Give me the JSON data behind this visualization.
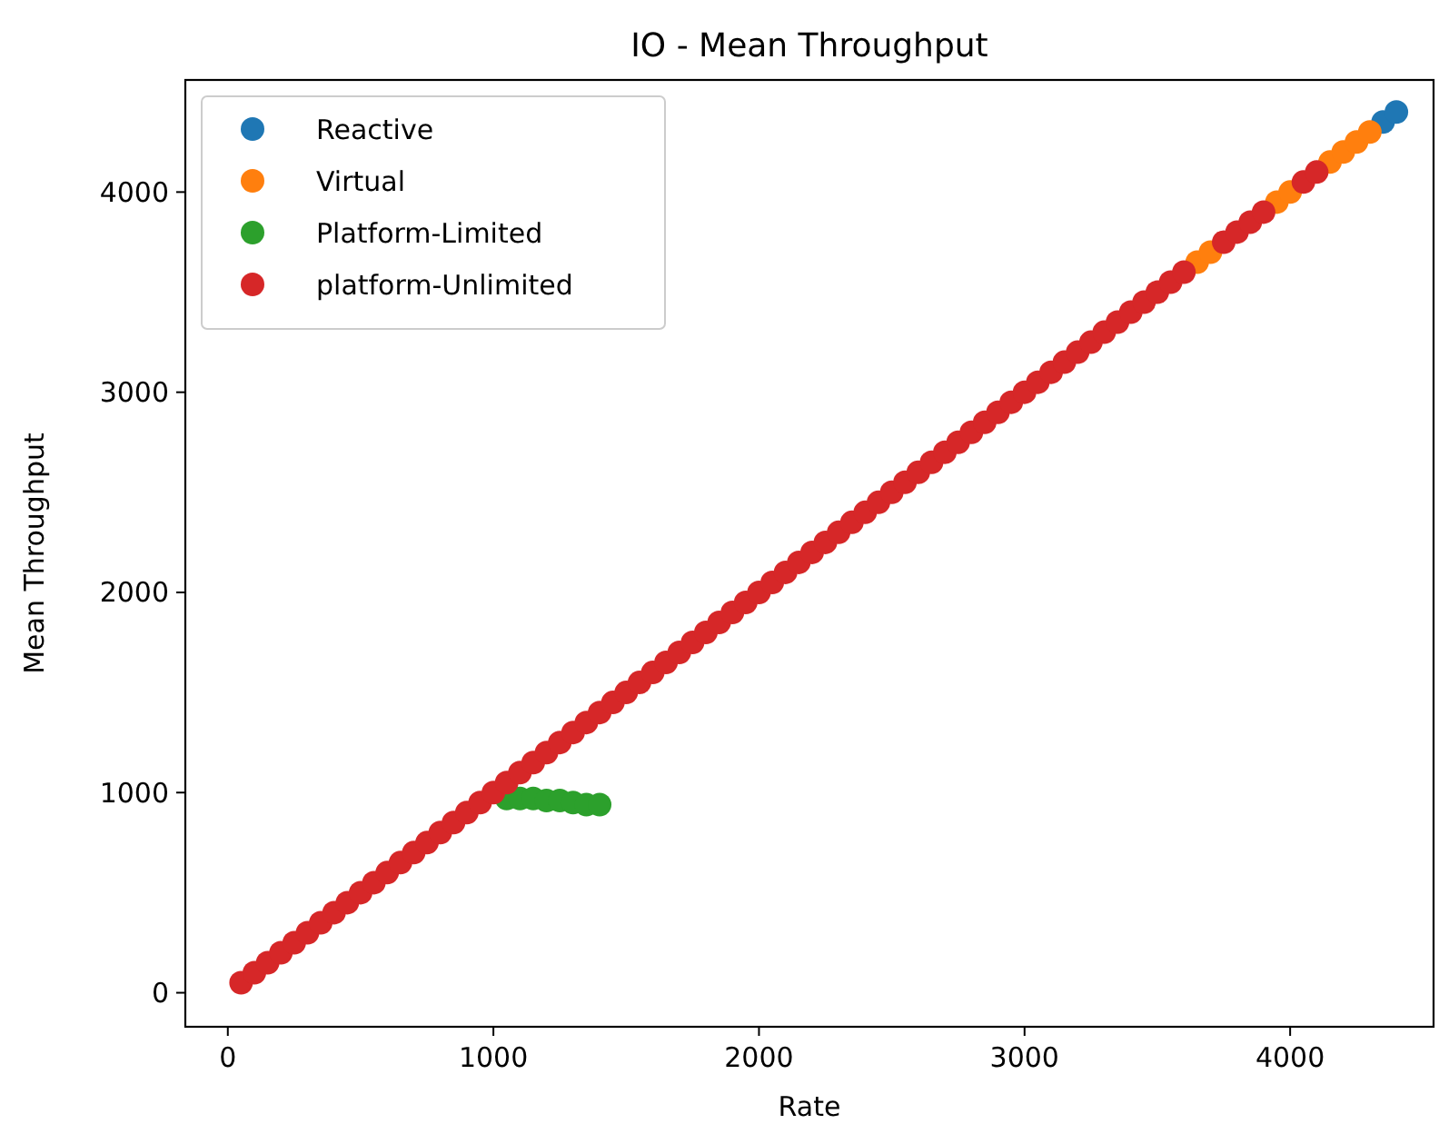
{
  "chart_data": {
    "type": "scatter",
    "title": "IO - Mean Throughput",
    "xlabel": "Rate",
    "ylabel": "Mean Throughput",
    "xlim": [
      -160,
      4540
    ],
    "ylim": [
      -170,
      4560
    ],
    "xticks": [
      0,
      1000,
      2000,
      3000,
      4000
    ],
    "yticks": [
      0,
      1000,
      2000,
      3000,
      4000
    ],
    "grid": false,
    "legend": "top left",
    "marker": "circle",
    "series": [
      {
        "name": "Reactive",
        "color": "#1f77b4",
        "x": [
          4350,
          4400
        ],
        "values": [
          4350,
          4400
        ]
      },
      {
        "name": "Virtual",
        "color": "#ff7f0e",
        "x": [
          3650,
          3700,
          3950,
          4000,
          4150,
          4200,
          4250,
          4300
        ],
        "values": [
          3650,
          3700,
          3950,
          4000,
          4150,
          4200,
          4250,
          4300
        ]
      },
      {
        "name": "Platform-Limited",
        "color": "#2ca02c",
        "x": [
          1050,
          1100,
          1150,
          1200,
          1250,
          1300,
          1350,
          1400
        ],
        "values": [
          970,
          970,
          970,
          960,
          960,
          950,
          940,
          940
        ]
      },
      {
        "name": "platform-Unlimited",
        "color": "#d62728",
        "x": [
          50,
          100,
          150,
          200,
          250,
          300,
          350,
          400,
          450,
          500,
          550,
          600,
          650,
          700,
          750,
          800,
          850,
          900,
          950,
          1000,
          1050,
          1100,
          1150,
          1200,
          1250,
          1300,
          1350,
          1400,
          1450,
          1500,
          1550,
          1600,
          1650,
          1700,
          1750,
          1800,
          1850,
          1900,
          1950,
          2000,
          2050,
          2100,
          2150,
          2200,
          2250,
          2300,
          2350,
          2400,
          2450,
          2500,
          2550,
          2600,
          2650,
          2700,
          2750,
          2800,
          2850,
          2900,
          2950,
          3000,
          3050,
          3100,
          3150,
          3200,
          3250,
          3300,
          3350,
          3400,
          3450,
          3500,
          3550,
          3600,
          3750,
          3800,
          3850,
          3900,
          4050,
          4100
        ],
        "values": [
          50,
          100,
          150,
          200,
          250,
          300,
          350,
          400,
          450,
          500,
          550,
          600,
          650,
          700,
          750,
          800,
          850,
          900,
          950,
          1000,
          1050,
          1100,
          1150,
          1200,
          1250,
          1300,
          1350,
          1400,
          1450,
          1500,
          1550,
          1600,
          1650,
          1700,
          1750,
          1800,
          1850,
          1900,
          1950,
          2000,
          2050,
          2100,
          2150,
          2200,
          2250,
          2300,
          2350,
          2400,
          2450,
          2500,
          2550,
          2600,
          2650,
          2700,
          2750,
          2800,
          2850,
          2900,
          2950,
          3000,
          3050,
          3100,
          3150,
          3200,
          3250,
          3300,
          3350,
          3400,
          3450,
          3500,
          3550,
          3600,
          3750,
          3800,
          3850,
          3900,
          4050,
          4100
        ]
      }
    ]
  }
}
